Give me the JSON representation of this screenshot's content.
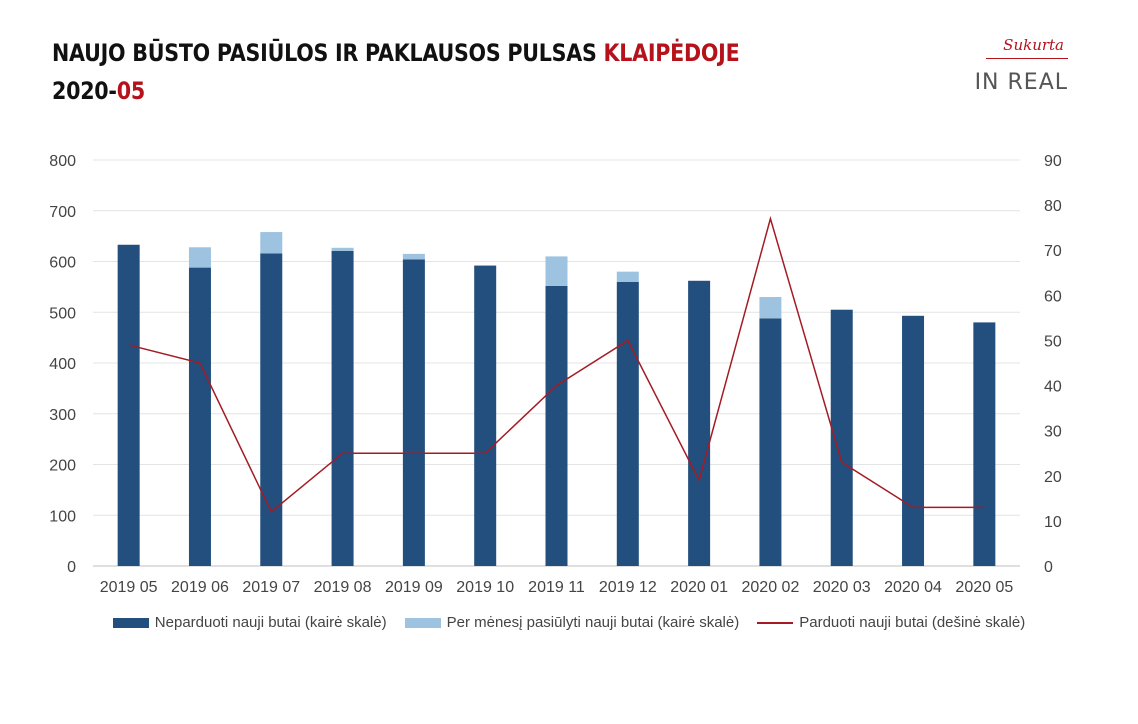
{
  "header": {
    "title_main": "NAUJO BŪSTO PASIŪLOS IR PAKLAUSOS PULSAS",
    "title_city": "KLAIPĖDOJE",
    "period_year": "2020-",
    "period_month": "05"
  },
  "logo": {
    "sukurta": "Sukurta",
    "inreal": "IN REAL"
  },
  "colors": {
    "unsold": "#234f7e",
    "offered": "#9dc3e0",
    "sold": "#a31c24",
    "accent": "#b5121b"
  },
  "chart_data": {
    "type": "bar",
    "categories": [
      "2019 05",
      "2019 06",
      "2019 07",
      "2019 08",
      "2019 09",
      "2019 10",
      "2019 11",
      "2019 12",
      "2020 01",
      "2020 02",
      "2020 03",
      "2020 04",
      "2020 05"
    ],
    "series": [
      {
        "name": "Neparduoti nauji butai (kairė skalė)",
        "type": "bar",
        "axis": "left",
        "values": [
          633,
          588,
          616,
          621,
          604,
          592,
          552,
          560,
          562,
          488,
          505,
          493,
          480
        ]
      },
      {
        "name": "Per mėnesį pasiūlyti nauji butai (kairė skalė)",
        "type": "bar-stacked",
        "axis": "left",
        "values": [
          0,
          40,
          42,
          6,
          11,
          0,
          58,
          20,
          0,
          42,
          0,
          0,
          0
        ]
      },
      {
        "name": "Parduoti nauji butai (dešinė skalė)",
        "type": "line",
        "axis": "right",
        "values": [
          49,
          45,
          12,
          25,
          25,
          25,
          40,
          50,
          19,
          77,
          23,
          13,
          13
        ]
      }
    ],
    "y_left": {
      "min": 0,
      "max": 800,
      "ticks": [
        "0",
        "100",
        "200",
        "300",
        "400",
        "500",
        "600",
        "700",
        "800"
      ]
    },
    "y_right": {
      "min": 0,
      "max": 90,
      "ticks": [
        "0",
        "10",
        "20",
        "30",
        "40",
        "50",
        "60",
        "70",
        "80",
        "90"
      ]
    },
    "grid": true,
    "legend_position": "bottom"
  }
}
